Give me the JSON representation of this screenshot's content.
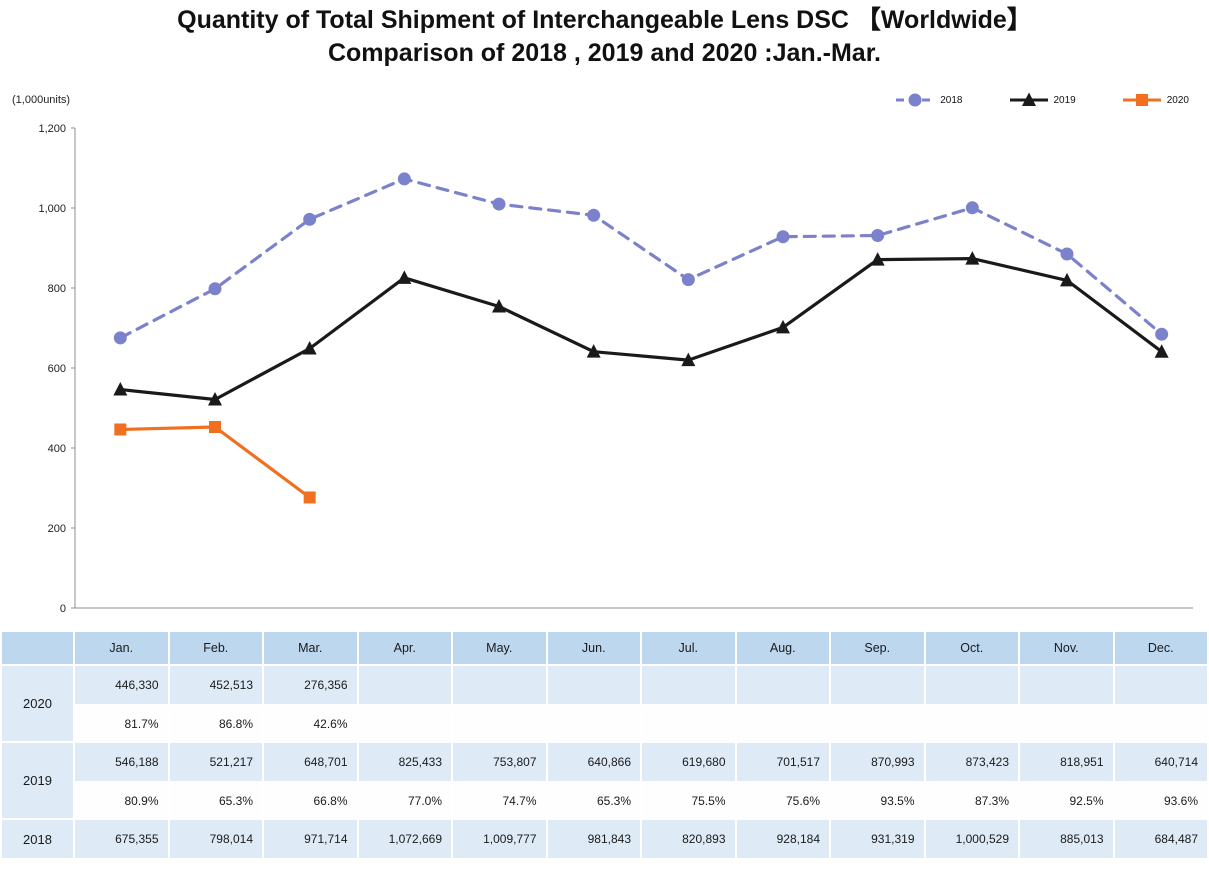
{
  "title": {
    "line1": "Quantity of Total Shipment of Interchangeable Lens DSC 【Worldwide】",
    "line2": "Comparison of 2018 , 2019 and 2020 :Jan.-Mar."
  },
  "chart_data": {
    "type": "line",
    "unit_label": "(1,000units)",
    "categories": [
      "Jan.",
      "Feb.",
      "Mar.",
      "Apr.",
      "May.",
      "Jun.",
      "Jul.",
      "Aug.",
      "Sep.",
      "Oct.",
      "Nov.",
      "Dec."
    ],
    "ylim": [
      0,
      1200
    ],
    "ytick_step": 200,
    "grid": false,
    "legend_position": "top-right",
    "series": [
      {
        "name": "2018",
        "color": "#7B82CB",
        "style": "dashed",
        "marker": "circle",
        "values": [
          675.355,
          798.014,
          971.714,
          1072.669,
          1009.777,
          981.843,
          820.893,
          928.184,
          931.319,
          1000.529,
          885.013,
          684.487
        ]
      },
      {
        "name": "2019",
        "color": "#1A1A1A",
        "style": "solid",
        "marker": "triangle",
        "values": [
          546.188,
          521.217,
          648.701,
          825.433,
          753.807,
          640.866,
          619.68,
          701.517,
          870.993,
          873.423,
          818.951,
          640.714
        ]
      },
      {
        "name": "2020",
        "color": "#F07020",
        "style": "solid",
        "marker": "square",
        "values": [
          446.33,
          452.513,
          276.356,
          null,
          null,
          null,
          null,
          null,
          null,
          null,
          null,
          null
        ]
      }
    ]
  },
  "table": {
    "months": [
      "Jan.",
      "Feb.",
      "Mar.",
      "Apr.",
      "May.",
      "Jun.",
      "Jul.",
      "Aug.",
      "Sep.",
      "Oct.",
      "Nov.",
      "Dec."
    ],
    "rows": [
      {
        "label": "2020",
        "values": [
          "446,330",
          "452,513",
          "276,356",
          "",
          "",
          "",
          "",
          "",
          "",
          "",
          "",
          ""
        ],
        "percents": [
          "81.7%",
          "86.8%",
          "42.6%",
          "",
          "",
          "",
          "",
          "",
          "",
          "",
          "",
          ""
        ]
      },
      {
        "label": "2019",
        "values": [
          "546,188",
          "521,217",
          "648,701",
          "825,433",
          "753,807",
          "640,866",
          "619,680",
          "701,517",
          "870,993",
          "873,423",
          "818,951",
          "640,714"
        ],
        "percents": [
          "80.9%",
          "65.3%",
          "66.8%",
          "77.0%",
          "74.7%",
          "65.3%",
          "75.5%",
          "75.6%",
          "93.5%",
          "87.3%",
          "92.5%",
          "93.6%"
        ]
      },
      {
        "label": "2018",
        "values": [
          "675,355",
          "798,014",
          "971,714",
          "1,072,669",
          "1,009,777",
          "981,843",
          "820,893",
          "928,184",
          "931,319",
          "1,000,529",
          "885,013",
          "684,487"
        ],
        "percents": null
      }
    ]
  }
}
